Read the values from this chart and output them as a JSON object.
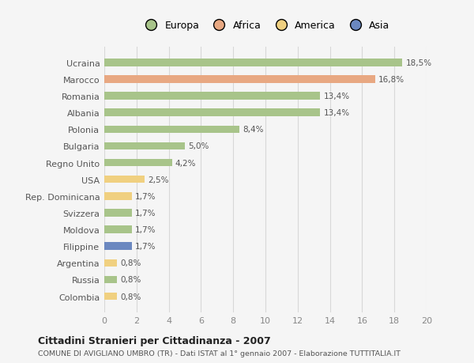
{
  "categories": [
    "Ucraina",
    "Marocco",
    "Romania",
    "Albania",
    "Polonia",
    "Bulgaria",
    "Regno Unito",
    "USA",
    "Rep. Dominicana",
    "Svizzera",
    "Moldova",
    "Filippine",
    "Argentina",
    "Russia",
    "Colombia"
  ],
  "values": [
    18.5,
    16.8,
    13.4,
    13.4,
    8.4,
    5.0,
    4.2,
    2.5,
    1.7,
    1.7,
    1.7,
    1.7,
    0.8,
    0.8,
    0.8
  ],
  "labels": [
    "18,5%",
    "16,8%",
    "13,4%",
    "13,4%",
    "8,4%",
    "5,0%",
    "4,2%",
    "2,5%",
    "1,7%",
    "1,7%",
    "1,7%",
    "1,7%",
    "0,8%",
    "0,8%",
    "0,8%"
  ],
  "colors": [
    "#a8c48a",
    "#e8a882",
    "#a8c48a",
    "#a8c48a",
    "#a8c48a",
    "#a8c48a",
    "#a8c48a",
    "#f0d080",
    "#f0d080",
    "#a8c48a",
    "#a8c48a",
    "#6b88c0",
    "#f0d080",
    "#a8c48a",
    "#f0d080"
  ],
  "legend_labels": [
    "Europa",
    "Africa",
    "America",
    "Asia"
  ],
  "legend_colors": [
    "#a8c48a",
    "#e8a882",
    "#f0d080",
    "#6b88c0"
  ],
  "title": "Cittadini Stranieri per Cittadinanza - 2007",
  "subtitle": "COMUNE DI AVIGLIANO UMBRO (TR) - Dati ISTAT al 1° gennaio 2007 - Elaborazione TUTTITALIA.IT",
  "xlim": [
    0,
    20
  ],
  "xticks": [
    0,
    2,
    4,
    6,
    8,
    10,
    12,
    14,
    16,
    18,
    20
  ],
  "bg_color": "#f5f5f5",
  "grid_color": "#d8d8d8"
}
